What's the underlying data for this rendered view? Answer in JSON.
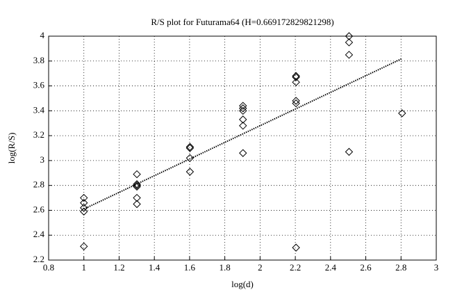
{
  "chart_data": {
    "type": "scatter",
    "title": "R/S plot for Futurama64 (H=0.669172829821298)",
    "x_label": "log(d)",
    "y_label": "log(R/S)",
    "x": [
      1,
      1,
      1,
      1,
      1,
      1.301,
      1.301,
      1.301,
      1.301,
      1.301,
      1.301,
      1.602,
      1.602,
      1.602,
      1.602,
      1.903,
      1.903,
      1.903,
      1.903,
      1.903,
      1.903,
      2.204,
      2.204,
      2.204,
      2.204,
      2.204,
      2.204,
      2.505,
      2.505,
      2.505,
      2.505,
      2.806
    ],
    "y": [
      2.7,
      2.66,
      2.62,
      2.59,
      2.31,
      2.89,
      2.81,
      2.8,
      2.79,
      2.7,
      2.65,
      3.11,
      3.1,
      3.02,
      2.91,
      3.44,
      3.42,
      3.4,
      3.33,
      3.28,
      3.06,
      3.68,
      3.67,
      3.63,
      3.48,
      3.46,
      2.3,
      4.0,
      3.95,
      3.85,
      3.07,
      3.38
    ],
    "color": "#000000",
    "trend_line": {
      "x": [
        1,
        2.806
      ],
      "y": [
        2.61,
        3.82
      ]
    },
    "xlim": [
      0.8,
      3
    ],
    "xticks": [
      0.8,
      1,
      1.2,
      1.4,
      1.6,
      1.8,
      2,
      2.2,
      2.4,
      2.6,
      2.8,
      3
    ],
    "ylim": [
      2.2,
      4
    ],
    "yticks": [
      2.2,
      2.4,
      2.6,
      2.8,
      3,
      3.2,
      3.4,
      3.6,
      3.8,
      4
    ],
    "grid": true
  }
}
